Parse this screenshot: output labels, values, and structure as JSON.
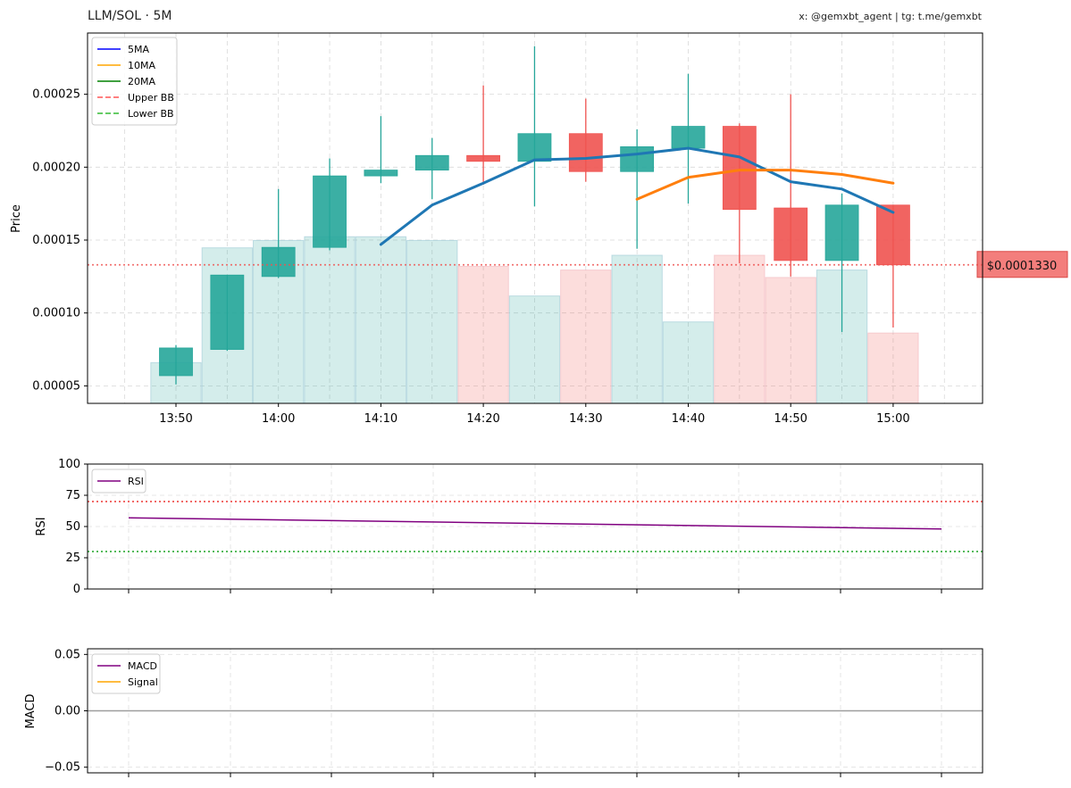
{
  "header": {
    "title": "LLM/SOL · 5M",
    "credit": "x: @gemxbt_agent | tg: t.me/gemxbt"
  },
  "colors": {
    "up": "#26a69a",
    "down": "#ef5350",
    "ma5": "#1f77b4",
    "ma10": "#ff7f0e",
    "ma20": "#008000",
    "rsi": "#800080",
    "signal": "#ffa500",
    "last_price_line": "#ef5350"
  },
  "chart_data": [
    {
      "type": "candlestick",
      "ylabel": "Price",
      "ylim": [
        3.8e-05,
        0.000292
      ],
      "yticks": [
        5e-05,
        0.0001,
        0.00015,
        0.0002,
        0.00025
      ],
      "ytick_labels": [
        "0.00005",
        "0.00010",
        "0.00015",
        "0.00020",
        "0.00025"
      ],
      "xticks": [
        "13:50",
        "13:55",
        "14:00",
        "14:05",
        "14:10",
        "14:15",
        "14:20",
        "14:25",
        "14:30",
        "14:35",
        "14:40",
        "14:45",
        "14:50",
        "14:55",
        "15:00"
      ],
      "xtick_labels": [
        "13:50",
        "",
        "14:00",
        "",
        "14:10",
        "",
        "14:20",
        "",
        "14:30",
        "",
        "14:40",
        "",
        "14:50",
        "",
        "15:00"
      ],
      "grid": true,
      "legend_position": "top-left",
      "legend": [
        {
          "label": "5MA",
          "color": "#0000ff",
          "style": "solid"
        },
        {
          "label": "10MA",
          "color": "#ffa500",
          "style": "solid"
        },
        {
          "label": "20MA",
          "color": "#008000",
          "style": "solid"
        },
        {
          "label": "Upper BB",
          "color": "#ff7f7f",
          "style": "dashed"
        },
        {
          "label": "Lower BB",
          "color": "#66cc66",
          "style": "dashed"
        }
      ],
      "candles": [
        {
          "time": "13:50",
          "open": 5.7e-05,
          "high": 7.8e-05,
          "low": 5.1e-05,
          "close": 7.6e-05
        },
        {
          "time": "13:55",
          "open": 7.5e-05,
          "high": 0.000126,
          "low": 7.4e-05,
          "close": 0.000126
        },
        {
          "time": "14:00",
          "open": 0.000125,
          "high": 0.000185,
          "low": 0.000124,
          "close": 0.000145
        },
        {
          "time": "14:05",
          "open": 0.000145,
          "high": 0.000206,
          "low": 0.000143,
          "close": 0.000194
        },
        {
          "time": "14:10",
          "open": 0.000194,
          "high": 0.000235,
          "low": 0.000189,
          "close": 0.000198
        },
        {
          "time": "14:15",
          "open": 0.000198,
          "high": 0.00022,
          "low": 0.000178,
          "close": 0.000208
        },
        {
          "time": "14:20",
          "open": 0.000208,
          "high": 0.000256,
          "low": 0.000188,
          "close": 0.000204
        },
        {
          "time": "14:25",
          "open": 0.000204,
          "high": 0.000283,
          "low": 0.000173,
          "close": 0.000223
        },
        {
          "time": "14:30",
          "open": 0.000223,
          "high": 0.000247,
          "low": 0.00019,
          "close": 0.000197
        },
        {
          "time": "14:35",
          "open": 0.000197,
          "high": 0.000226,
          "low": 0.000144,
          "close": 0.000214
        },
        {
          "time": "14:40",
          "open": 0.000213,
          "high": 0.000264,
          "low": 0.000175,
          "close": 0.000228
        },
        {
          "time": "14:45",
          "open": 0.000228,
          "high": 0.00023,
          "low": 0.000134,
          "close": 0.000171
        },
        {
          "time": "14:50",
          "open": 0.000172,
          "high": 0.00025,
          "low": 0.000125,
          "close": 0.000136
        },
        {
          "time": "14:55",
          "open": 0.000136,
          "high": 0.000182,
          "low": 8.7e-05,
          "close": 0.000174
        },
        {
          "time": "15:00",
          "open": 0.000174,
          "high": 0.000174,
          "low": 9e-05,
          "close": 0.000133
        }
      ],
      "volume_relative": [
        0.11,
        0.42,
        0.44,
        0.45,
        0.45,
        0.44,
        0.37,
        0.29,
        0.36,
        0.4,
        0.22,
        0.4,
        0.34,
        0.36,
        0.19
      ],
      "series": [
        {
          "name": "5MA",
          "x": [
            "14:10",
            "14:15",
            "14:20",
            "14:25",
            "14:30",
            "14:35",
            "14:40",
            "14:45",
            "14:50",
            "14:55",
            "15:00"
          ],
          "values": [
            0.000147,
            0.000174,
            0.000189,
            0.000205,
            0.000206,
            0.000209,
            0.000213,
            0.000207,
            0.00019,
            0.000185,
            0.000169
          ]
        },
        {
          "name": "10MA",
          "x": [
            "14:35",
            "14:40",
            "14:45",
            "14:50",
            "14:55",
            "15:00"
          ],
          "values": [
            0.000178,
            0.000193,
            0.000198,
            0.000198,
            0.000195,
            0.000189
          ]
        }
      ],
      "last_price": 0.000133,
      "last_price_label": "$0.0001330"
    },
    {
      "type": "line",
      "ylabel": "RSI",
      "ylim": [
        0,
        100
      ],
      "yticks": [
        0,
        25,
        50,
        75,
        100
      ],
      "ytick_labels": [
        "0",
        "25",
        "50",
        "75",
        "100"
      ],
      "overbought": 70,
      "oversold": 30,
      "grid": true,
      "legend_position": "top-left",
      "legend": [
        {
          "label": "RSI",
          "color": "#800080",
          "style": "solid"
        }
      ],
      "series": [
        {
          "name": "RSI",
          "x": [
            "13:50",
            "15:00"
          ],
          "values": [
            57,
            48
          ]
        }
      ]
    },
    {
      "type": "line",
      "ylabel": "MACD",
      "ylim": [
        -0.055,
        0.055
      ],
      "yticks": [
        -0.05,
        0,
        0.05
      ],
      "ytick_labels": [
        "−0.05",
        "0.00",
        "0.05"
      ],
      "zero_line": 0,
      "grid": true,
      "legend_position": "top-left",
      "legend": [
        {
          "label": "MACD",
          "color": "#800080",
          "style": "solid"
        },
        {
          "label": "Signal",
          "color": "#ffa500",
          "style": "solid"
        }
      ],
      "series": []
    }
  ]
}
